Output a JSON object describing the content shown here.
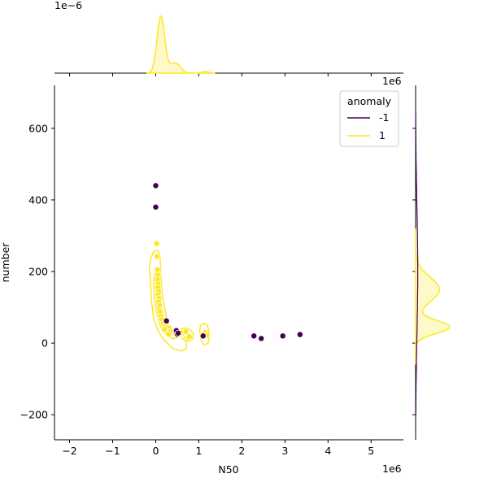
{
  "chart_data": {
    "type": "scatter",
    "xlabel": "N50",
    "ylabel": "number",
    "x_offset_label": "1e6",
    "y_offset_label": "",
    "top_marginal_offset_label": "1e−6",
    "right_marginal_offset_label": "1e6",
    "xlim": [
      -2.35,
      5.75
    ],
    "ylim": [
      -270,
      720
    ],
    "x_ticks": [
      {
        "value": -2,
        "label": "−2"
      },
      {
        "value": -1,
        "label": "−1"
      },
      {
        "value": 0,
        "label": "0"
      },
      {
        "value": 1,
        "label": "1"
      },
      {
        "value": 2,
        "label": "2"
      },
      {
        "value": 3,
        "label": "3"
      },
      {
        "value": 4,
        "label": "4"
      },
      {
        "value": 5,
        "label": "5"
      }
    ],
    "y_ticks": [
      {
        "value": -200,
        "label": "−200"
      },
      {
        "value": 0,
        "label": "0"
      },
      {
        "value": 200,
        "label": "200"
      },
      {
        "value": 400,
        "label": "400"
      },
      {
        "value": 600,
        "label": "600"
      }
    ],
    "legend": {
      "title": "anomaly",
      "placement": "top-right",
      "entries": [
        {
          "label": "-1",
          "color": "#440154"
        },
        {
          "label": "1",
          "color": "#fde725"
        }
      ]
    },
    "series": [
      {
        "name": "-1",
        "color": "#440154",
        "points": [
          {
            "x": 0.0,
            "y": 440
          },
          {
            "x": 0.0,
            "y": 380
          },
          {
            "x": 0.25,
            "y": 62
          },
          {
            "x": 0.48,
            "y": 35
          },
          {
            "x": 0.5,
            "y": 25
          },
          {
            "x": 0.52,
            "y": 28
          },
          {
            "x": 1.1,
            "y": 20
          },
          {
            "x": 2.28,
            "y": 20
          },
          {
            "x": 2.45,
            "y": 13
          },
          {
            "x": 2.95,
            "y": 20
          },
          {
            "x": 3.35,
            "y": 24
          }
        ]
      },
      {
        "name": "1",
        "color": "#fde725",
        "points": [
          {
            "x": 0.02,
            "y": 278
          },
          {
            "x": 0.03,
            "y": 242
          },
          {
            "x": 0.04,
            "y": 205
          },
          {
            "x": 0.05,
            "y": 190
          },
          {
            "x": 0.04,
            "y": 178
          },
          {
            "x": 0.06,
            "y": 165
          },
          {
            "x": 0.05,
            "y": 155
          },
          {
            "x": 0.07,
            "y": 145
          },
          {
            "x": 0.06,
            "y": 135
          },
          {
            "x": 0.08,
            "y": 125
          },
          {
            "x": 0.07,
            "y": 115
          },
          {
            "x": 0.09,
            "y": 105
          },
          {
            "x": 0.08,
            "y": 95
          },
          {
            "x": 0.1,
            "y": 88
          },
          {
            "x": 0.12,
            "y": 75
          },
          {
            "x": 0.15,
            "y": 65
          },
          {
            "x": 0.18,
            "y": 55
          },
          {
            "x": 0.22,
            "y": 50
          },
          {
            "x": 0.25,
            "y": 45
          },
          {
            "x": 0.28,
            "y": 38
          },
          {
            "x": 0.32,
            "y": 42
          },
          {
            "x": 0.35,
            "y": 33
          },
          {
            "x": 0.4,
            "y": 30
          },
          {
            "x": 0.45,
            "y": 28
          },
          {
            "x": 0.55,
            "y": 25
          },
          {
            "x": 0.6,
            "y": 30
          },
          {
            "x": 0.7,
            "y": 32
          },
          {
            "x": 0.78,
            "y": 18
          },
          {
            "x": 0.2,
            "y": 38
          },
          {
            "x": 0.3,
            "y": 25
          },
          {
            "x": 1.15,
            "y": 30
          },
          {
            "x": 1.18,
            "y": 22
          }
        ]
      }
    ],
    "kde_contours_series": "1",
    "top_marginal": {
      "series": "1",
      "peak_x": 0.12,
      "ylim_label": ""
    },
    "right_marginal": {
      "series": "1",
      "peaks_y": [
        150,
        45
      ]
    }
  }
}
